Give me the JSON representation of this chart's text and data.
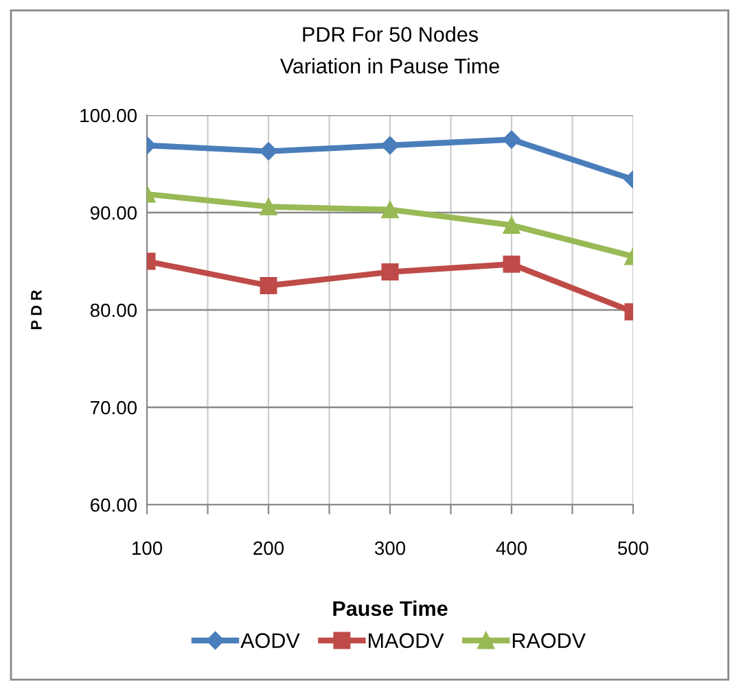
{
  "chart_data": {
    "type": "line",
    "title": "PDR For 50 Nodes\nVariation in Pause Time",
    "xlabel": "Pause Time",
    "ylabel": "P D R",
    "x": [
      100,
      200,
      300,
      400,
      500
    ],
    "series": [
      {
        "name": "AODV",
        "color": "#4a7ebb",
        "marker": "diamond",
        "values": [
          96.9,
          96.3,
          96.9,
          97.5,
          93.4
        ]
      },
      {
        "name": "MAODV",
        "color": "#be4b48",
        "marker": "square",
        "values": [
          85.0,
          82.5,
          83.9,
          84.7,
          79.8
        ]
      },
      {
        "name": "RAODV",
        "color": "#98b954",
        "marker": "triangle",
        "values": [
          91.9,
          90.6,
          90.3,
          88.7,
          85.5
        ]
      }
    ],
    "xlim": [
      100,
      500
    ],
    "xticks": [
      100,
      {
        "value": 150,
        "label": null
      },
      200,
      {
        "value": 250,
        "label": null
      },
      300,
      {
        "value": 350,
        "label": null
      },
      400,
      {
        "value": 450,
        "label": null
      },
      500
    ],
    "ylim": [
      60,
      100
    ],
    "yticks": [
      {
        "value": 60,
        "label": "60.00"
      },
      {
        "value": 70,
        "label": "70.00"
      },
      {
        "value": 80,
        "label": "80.00"
      },
      {
        "value": 90,
        "label": "90.00"
      },
      {
        "value": 100,
        "label": "100.00"
      }
    ],
    "grid": true,
    "legend": "bottom",
    "line_style": "solid"
  }
}
